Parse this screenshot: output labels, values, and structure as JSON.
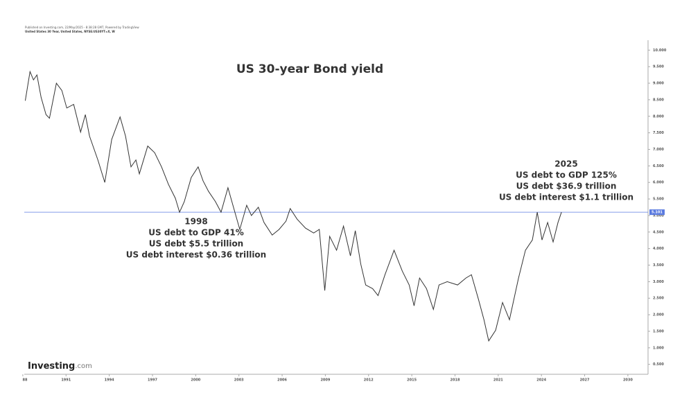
{
  "header": {
    "line1": "Published on Investing.com, 22/May/2025 - 8:38:28 GMT, Powered by TradingView",
    "line2": "United States 30 Year, United States, NYSE:US30YT=X, W"
  },
  "logo": {
    "name": "Investing",
    "suffix": ".com"
  },
  "chart_data": {
    "type": "line",
    "title": "US 30-year Bond yield",
    "x": [
      1988.17,
      1988.5,
      1988.74,
      1988.98,
      1989.27,
      1989.61,
      1989.85,
      1990.33,
      1990.71,
      1991.05,
      1991.53,
      1992.01,
      1992.34,
      1992.63,
      1993.21,
      1993.69,
      1994.17,
      1994.75,
      1995.13,
      1995.51,
      1995.85,
      1996.09,
      1996.67,
      1997.15,
      1997.63,
      1998.11,
      1998.59,
      1998.88,
      1999.21,
      1999.69,
      2000.17,
      2000.51,
      2000.89,
      2001.37,
      2001.76,
      2002.24,
      2002.72,
      2003.06,
      2003.54,
      2003.87,
      2004.35,
      2004.74,
      2005.31,
      2005.79,
      2006.27,
      2006.56,
      2007.04,
      2007.62,
      2008.19,
      2008.58,
      2008.96,
      2009.3,
      2009.78,
      2010.26,
      2010.74,
      2011.08,
      2011.46,
      2011.8,
      2012.28,
      2012.66,
      2013.14,
      2013.77,
      2014.34,
      2014.82,
      2015.16,
      2015.54,
      2016.02,
      2016.5,
      2016.89,
      2017.46,
      2018.18,
      2018.76,
      2019.14,
      2019.62,
      2020.01,
      2020.34,
      2020.82,
      2021.3,
      2021.78,
      2022.41,
      2022.89,
      2023.37,
      2023.71,
      2024.04,
      2024.43,
      2024.81,
      2025.15,
      2025.39
    ],
    "values": [
      8.47,
      9.35,
      9.1,
      9.25,
      8.57,
      8.05,
      7.94,
      9.0,
      8.78,
      8.25,
      8.36,
      7.52,
      8.05,
      7.4,
      6.68,
      6.0,
      7.3,
      7.98,
      7.4,
      6.47,
      6.68,
      6.26,
      7.1,
      6.9,
      6.47,
      5.94,
      5.52,
      5.1,
      5.42,
      6.15,
      6.47,
      6.05,
      5.73,
      5.42,
      5.1,
      5.84,
      5.1,
      4.58,
      5.31,
      5.0,
      5.25,
      4.79,
      4.41,
      4.58,
      4.83,
      5.21,
      4.89,
      4.62,
      4.47,
      4.58,
      2.73,
      4.37,
      3.95,
      4.68,
      3.78,
      4.54,
      3.53,
      2.9,
      2.79,
      2.58,
      3.21,
      3.95,
      3.32,
      2.9,
      2.27,
      3.11,
      2.79,
      2.16,
      2.9,
      3.0,
      2.9,
      3.11,
      3.21,
      2.48,
      1.85,
      1.21,
      1.53,
      2.37,
      1.85,
      3.11,
      3.95,
      4.26,
      5.1,
      4.26,
      4.79,
      4.2,
      4.79,
      5.1
    ],
    "color": "#333333",
    "last_value": {
      "value": 5.101,
      "label": "5.101"
    },
    "last_value_color": "#5b7be0",
    "xlim": [
      1988.1,
      2031.4
    ],
    "ylim": [
      0.2,
      10.3
    ],
    "xticks": [
      {
        "value": 1988,
        "label": "88"
      },
      1991,
      1994,
      1997,
      2000,
      2003,
      2006,
      2009,
      2012,
      2015,
      2018,
      2021,
      2024,
      2027,
      2030
    ],
    "yticks": [
      {
        "value": 0.5,
        "label": "0.500"
      },
      {
        "value": 1,
        "label": "1.000"
      },
      {
        "value": 1.5,
        "label": "1.500"
      },
      {
        "value": 2,
        "label": "2.000"
      },
      {
        "value": 2.5,
        "label": "2.500"
      },
      {
        "value": 3,
        "label": "3.000"
      },
      {
        "value": 3.5,
        "label": "3.500"
      },
      {
        "value": 4,
        "label": "4.000"
      },
      {
        "value": 4.5,
        "label": "4.500"
      },
      {
        "value": 5,
        "label": "5.000"
      },
      {
        "value": 5.5,
        "label": "5.500"
      },
      {
        "value": 6,
        "label": "6.000"
      },
      {
        "value": 6.5,
        "label": "6.500"
      },
      {
        "value": 7,
        "label": "7.000"
      },
      {
        "value": 7.5,
        "label": "7.500"
      },
      {
        "value": 8,
        "label": "8.000"
      },
      {
        "value": 8.5,
        "label": "8.500"
      },
      {
        "value": 9,
        "label": "9.000"
      },
      {
        "value": 9.5,
        "label": "9.500"
      },
      {
        "value": 10,
        "label": "10.000"
      }
    ],
    "annotations": [
      {
        "lines": [
          "1998",
          "US debt to GDP 41%",
          "US debt $5.5 trillion",
          "US debt interest $0.36 trillion"
        ]
      },
      {
        "lines": [
          "2025",
          "US debt to GDP 125%",
          "US debt $36.9 trillion",
          "US debt interest $1.1 trillion"
        ]
      }
    ]
  }
}
